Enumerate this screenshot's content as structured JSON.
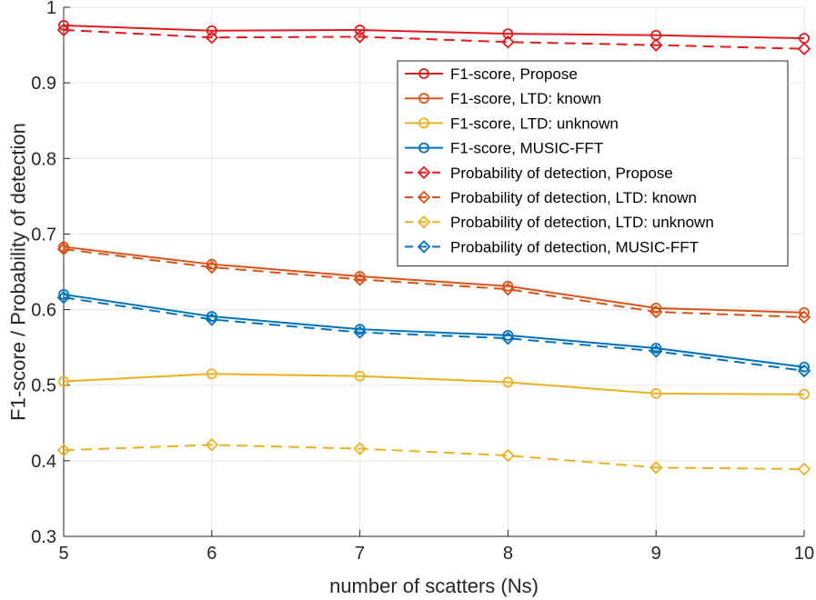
{
  "chart_data": {
    "type": "line",
    "title": "",
    "xlabel": "number of scatters (Ns)",
    "ylabel": "F1-score / Probability of detection",
    "x": [
      5,
      6,
      7,
      8,
      9,
      10
    ],
    "xlim": [
      5,
      10
    ],
    "ylim": [
      0.3,
      1
    ],
    "xticks": [
      "5",
      "6",
      "7",
      "8",
      "9",
      "10"
    ],
    "yticks": [
      "0.3",
      "0.4",
      "0.5",
      "0.6",
      "0.7",
      "0.8",
      "0.9",
      "1"
    ],
    "grid": true,
    "legend_position": "top-right",
    "series": [
      {
        "name": "F1-score, Propose",
        "color": "#e31a1c",
        "style": "solid",
        "marker": "circle",
        "values": [
          0.976,
          0.969,
          0.97,
          0.965,
          0.963,
          0.959
        ]
      },
      {
        "name": "F1-score, LTD: known",
        "color": "#d95319",
        "style": "solid",
        "marker": "circle",
        "values": [
          0.683,
          0.66,
          0.644,
          0.631,
          0.602,
          0.596
        ]
      },
      {
        "name": "F1-score, LTD: unknown",
        "color": "#edb120",
        "style": "solid",
        "marker": "circle",
        "values": [
          0.505,
          0.515,
          0.512,
          0.504,
          0.489,
          0.488
        ]
      },
      {
        "name": "F1-score, MUSIC-FFT",
        "color": "#0072bd",
        "style": "solid",
        "marker": "circle",
        "values": [
          0.62,
          0.591,
          0.574,
          0.566,
          0.549,
          0.524
        ]
      },
      {
        "name": "Probability of detection, Propose",
        "color": "#e31a1c",
        "style": "dashed",
        "marker": "diamond",
        "values": [
          0.97,
          0.96,
          0.961,
          0.954,
          0.95,
          0.945
        ]
      },
      {
        "name": "Probability of detection, LTD: known",
        "color": "#d95319",
        "style": "dashed",
        "marker": "diamond",
        "values": [
          0.68,
          0.656,
          0.64,
          0.627,
          0.597,
          0.59
        ]
      },
      {
        "name": "Probability of detection, LTD: unknown",
        "color": "#edb120",
        "style": "dashed",
        "marker": "diamond",
        "values": [
          0.414,
          0.421,
          0.416,
          0.407,
          0.391,
          0.389
        ]
      },
      {
        "name": "Probability of detection, MUSIC-FFT",
        "color": "#0072bd",
        "style": "dashed",
        "marker": "diamond",
        "values": [
          0.616,
          0.587,
          0.57,
          0.562,
          0.545,
          0.519
        ]
      }
    ]
  }
}
